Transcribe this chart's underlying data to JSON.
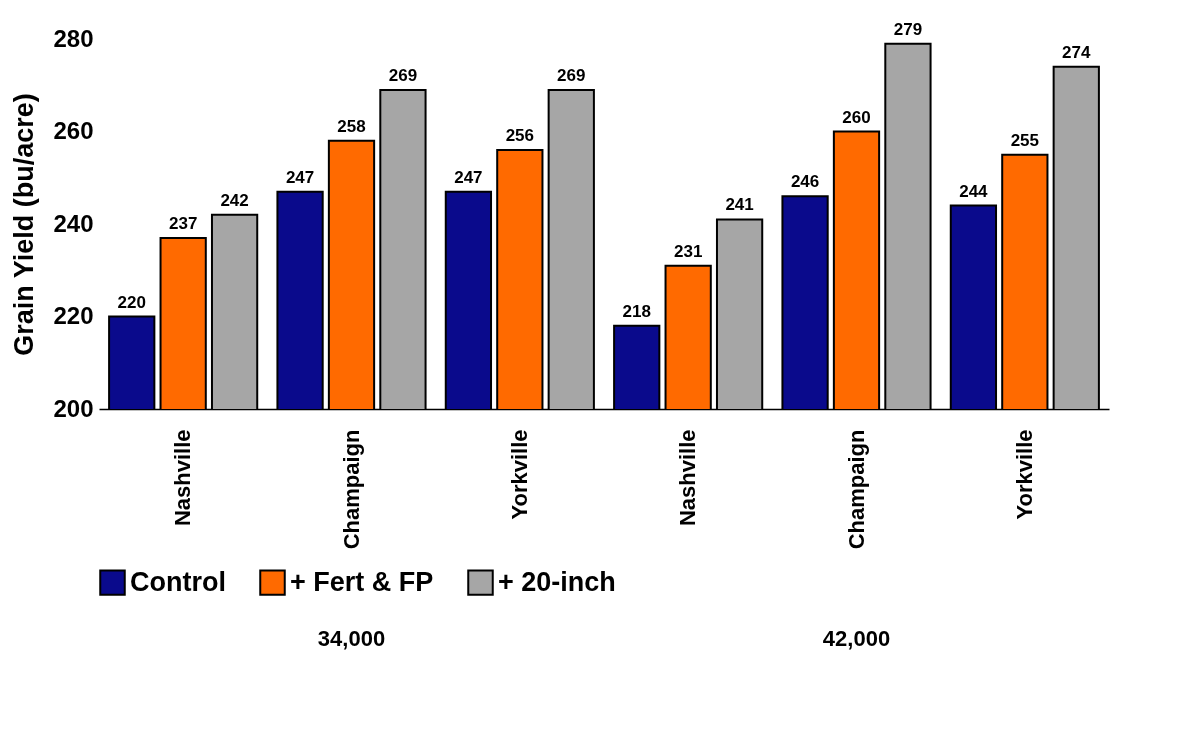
{
  "chart_data": {
    "type": "bar",
    "ylabel": "Grain Yield (bu/acre)",
    "categories": [
      "Nashville",
      "Champaign",
      "Yorkville",
      "Nashville",
      "Champaign",
      "Yorkville"
    ],
    "series": [
      {
        "name": "Control",
        "color": "#0a0a8c",
        "values": [
          220,
          247,
          247,
          218,
          246,
          244
        ]
      },
      {
        "name": "+ Fert & FP",
        "color": "#ff6a00",
        "values": [
          237,
          258,
          256,
          231,
          260,
          255
        ]
      },
      {
        "name": "+ 20-inch",
        "color": "#a6a6a6",
        "values": [
          242,
          269,
          269,
          241,
          279,
          274
        ]
      }
    ],
    "ylim": [
      200,
      280
    ],
    "yticks": [
      200,
      220,
      240,
      260,
      280
    ],
    "grid": false,
    "legend": "bottom",
    "data_labels": true,
    "annotations": [
      "34,000",
      "42,000"
    ]
  }
}
